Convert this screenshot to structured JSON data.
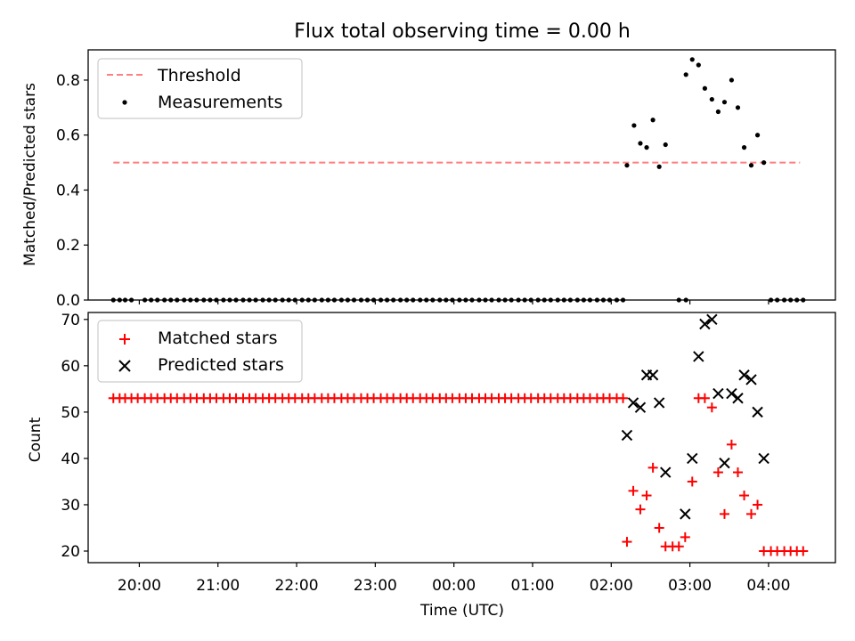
{
  "chart_data": [
    {
      "type": "scatter",
      "title": "Flux total observing time = 0.00 h",
      "ylabel": "Matched/Predicted stars",
      "xlabel": "",
      "xlim": [
        19.35,
        28.85
      ],
      "ylim": [
        0.0,
        0.91
      ],
      "yticks": [
        0.0,
        0.2,
        0.4,
        0.6,
        0.8
      ],
      "ytick_labels": [
        "0.0",
        "0.2",
        "0.4",
        "0.6",
        "0.8"
      ],
      "xticks": [
        20,
        21,
        22,
        23,
        24,
        25,
        26,
        27,
        28
      ],
      "legend": {
        "position": "top-left",
        "entries": [
          "Threshold",
          "Measurements"
        ]
      },
      "series": [
        {
          "name": "Threshold",
          "kind": "dashed-line",
          "color": "#ff7f7f",
          "x": [
            19.67,
            28.4
          ],
          "y": [
            0.5,
            0.5
          ]
        },
        {
          "name": "Measurements",
          "kind": "dots",
          "color": "#000000",
          "points": [
            [
              19.67,
              0
            ],
            [
              19.75,
              0
            ],
            [
              19.82,
              0
            ],
            [
              19.9,
              0
            ],
            [
              20.07,
              0
            ],
            [
              20.15,
              0
            ],
            [
              20.23,
              0
            ],
            [
              20.32,
              0
            ],
            [
              20.4,
              0
            ],
            [
              20.48,
              0
            ],
            [
              20.57,
              0
            ],
            [
              20.65,
              0
            ],
            [
              20.73,
              0
            ],
            [
              20.82,
              0
            ],
            [
              20.9,
              0
            ],
            [
              20.98,
              0
            ],
            [
              21.07,
              0
            ],
            [
              21.15,
              0
            ],
            [
              21.23,
              0
            ],
            [
              21.32,
              0
            ],
            [
              21.4,
              0
            ],
            [
              21.48,
              0
            ],
            [
              21.57,
              0
            ],
            [
              21.65,
              0
            ],
            [
              21.73,
              0
            ],
            [
              21.82,
              0
            ],
            [
              21.9,
              0
            ],
            [
              21.98,
              0
            ],
            [
              22.07,
              0
            ],
            [
              22.15,
              0
            ],
            [
              22.23,
              0
            ],
            [
              22.32,
              0
            ],
            [
              22.4,
              0
            ],
            [
              22.48,
              0
            ],
            [
              22.57,
              0
            ],
            [
              22.65,
              0
            ],
            [
              22.73,
              0
            ],
            [
              22.82,
              0
            ],
            [
              22.9,
              0
            ],
            [
              22.98,
              0
            ],
            [
              23.07,
              0
            ],
            [
              23.15,
              0
            ],
            [
              23.23,
              0
            ],
            [
              23.32,
              0
            ],
            [
              23.4,
              0
            ],
            [
              23.48,
              0
            ],
            [
              23.57,
              0
            ],
            [
              23.65,
              0
            ],
            [
              23.73,
              0
            ],
            [
              23.82,
              0
            ],
            [
              23.9,
              0
            ],
            [
              23.98,
              0
            ],
            [
              24.07,
              0
            ],
            [
              24.15,
              0
            ],
            [
              24.23,
              0
            ],
            [
              24.32,
              0
            ],
            [
              24.4,
              0
            ],
            [
              24.48,
              0
            ],
            [
              24.57,
              0
            ],
            [
              24.65,
              0
            ],
            [
              24.73,
              0
            ],
            [
              24.82,
              0
            ],
            [
              24.9,
              0
            ],
            [
              24.98,
              0
            ],
            [
              25.07,
              0
            ],
            [
              25.15,
              0
            ],
            [
              25.23,
              0
            ],
            [
              25.32,
              0
            ],
            [
              25.4,
              0
            ],
            [
              25.48,
              0
            ],
            [
              25.57,
              0
            ],
            [
              25.65,
              0
            ],
            [
              25.73,
              0
            ],
            [
              25.82,
              0
            ],
            [
              25.9,
              0
            ],
            [
              25.98,
              0
            ],
            [
              26.07,
              0
            ],
            [
              26.15,
              0
            ],
            [
              26.2,
              0.49
            ],
            [
              26.29,
              0.635
            ],
            [
              26.37,
              0.57
            ],
            [
              26.45,
              0.555
            ],
            [
              26.53,
              0.655
            ],
            [
              26.61,
              0.485
            ],
            [
              26.69,
              0.565
            ],
            [
              26.86,
              0
            ],
            [
              26.95,
              0
            ],
            [
              26.95,
              0.82
            ],
            [
              27.03,
              0.875
            ],
            [
              27.11,
              0.855
            ],
            [
              27.19,
              0.77
            ],
            [
              27.28,
              0.73
            ],
            [
              27.36,
              0.685
            ],
            [
              27.44,
              0.72
            ],
            [
              27.53,
              0.8
            ],
            [
              27.61,
              0.7
            ],
            [
              27.69,
              0.555
            ],
            [
              27.78,
              0.49
            ],
            [
              27.86,
              0.6
            ],
            [
              27.94,
              0.5
            ],
            [
              28.03,
              0
            ],
            [
              28.11,
              0
            ],
            [
              28.2,
              0
            ],
            [
              28.28,
              0
            ],
            [
              28.36,
              0
            ],
            [
              28.44,
              0
            ]
          ]
        }
      ]
    },
    {
      "type": "scatter",
      "title": "",
      "xlabel": "Time (UTC)",
      "ylabel": "Count",
      "xlim": [
        19.35,
        28.85
      ],
      "ylim": [
        17.5,
        71.5
      ],
      "yticks": [
        20,
        30,
        40,
        50,
        60,
        70
      ],
      "ytick_labels": [
        "20",
        "30",
        "40",
        "50",
        "60",
        "70"
      ],
      "xticks": [
        20,
        21,
        22,
        23,
        24,
        25,
        26,
        27,
        28
      ],
      "xtick_labels": [
        "20:00",
        "21:00",
        "22:00",
        "23:00",
        "00:00",
        "01:00",
        "02:00",
        "03:00",
        "04:00"
      ],
      "legend": {
        "position": "top-left",
        "entries": [
          "Matched stars",
          "Predicted stars"
        ]
      },
      "series": [
        {
          "name": "Matched stars",
          "marker": "plus",
          "color": "#ff0000",
          "points": [
            [
              19.67,
              53
            ],
            [
              19.75,
              53
            ],
            [
              19.82,
              53
            ],
            [
              19.9,
              53
            ],
            [
              19.98,
              53
            ],
            [
              20.07,
              53
            ],
            [
              20.15,
              53
            ],
            [
              20.23,
              53
            ],
            [
              20.32,
              53
            ],
            [
              20.4,
              53
            ],
            [
              20.48,
              53
            ],
            [
              20.57,
              53
            ],
            [
              20.65,
              53
            ],
            [
              20.73,
              53
            ],
            [
              20.82,
              53
            ],
            [
              20.9,
              53
            ],
            [
              20.98,
              53
            ],
            [
              21.07,
              53
            ],
            [
              21.15,
              53
            ],
            [
              21.23,
              53
            ],
            [
              21.32,
              53
            ],
            [
              21.4,
              53
            ],
            [
              21.48,
              53
            ],
            [
              21.57,
              53
            ],
            [
              21.65,
              53
            ],
            [
              21.73,
              53
            ],
            [
              21.82,
              53
            ],
            [
              21.9,
              53
            ],
            [
              21.98,
              53
            ],
            [
              22.07,
              53
            ],
            [
              22.15,
              53
            ],
            [
              22.23,
              53
            ],
            [
              22.32,
              53
            ],
            [
              22.4,
              53
            ],
            [
              22.48,
              53
            ],
            [
              22.57,
              53
            ],
            [
              22.65,
              53
            ],
            [
              22.73,
              53
            ],
            [
              22.82,
              53
            ],
            [
              22.9,
              53
            ],
            [
              22.98,
              53
            ],
            [
              23.07,
              53
            ],
            [
              23.15,
              53
            ],
            [
              23.23,
              53
            ],
            [
              23.32,
              53
            ],
            [
              23.4,
              53
            ],
            [
              23.48,
              53
            ],
            [
              23.57,
              53
            ],
            [
              23.65,
              53
            ],
            [
              23.73,
              53
            ],
            [
              23.82,
              53
            ],
            [
              23.9,
              53
            ],
            [
              23.98,
              53
            ],
            [
              24.07,
              53
            ],
            [
              24.15,
              53
            ],
            [
              24.23,
              53
            ],
            [
              24.32,
              53
            ],
            [
              24.4,
              53
            ],
            [
              24.48,
              53
            ],
            [
              24.57,
              53
            ],
            [
              24.65,
              53
            ],
            [
              24.73,
              53
            ],
            [
              24.82,
              53
            ],
            [
              24.9,
              53
            ],
            [
              24.98,
              53
            ],
            [
              25.07,
              53
            ],
            [
              25.15,
              53
            ],
            [
              25.23,
              53
            ],
            [
              25.32,
              53
            ],
            [
              25.4,
              53
            ],
            [
              25.48,
              53
            ],
            [
              25.57,
              53
            ],
            [
              25.65,
              53
            ],
            [
              25.73,
              53
            ],
            [
              25.82,
              53
            ],
            [
              25.9,
              53
            ],
            [
              25.98,
              53
            ],
            [
              26.07,
              53
            ],
            [
              26.15,
              53
            ],
            [
              26.2,
              22
            ],
            [
              26.28,
              33
            ],
            [
              26.37,
              29
            ],
            [
              26.45,
              32
            ],
            [
              26.53,
              38
            ],
            [
              26.61,
              25
            ],
            [
              26.69,
              21
            ],
            [
              26.78,
              21
            ],
            [
              26.86,
              21
            ],
            [
              26.94,
              23
            ],
            [
              27.03,
              35
            ],
            [
              27.11,
              53
            ],
            [
              27.19,
              53
            ],
            [
              27.28,
              51
            ],
            [
              27.36,
              37
            ],
            [
              27.44,
              28
            ],
            [
              27.53,
              43
            ],
            [
              27.61,
              37
            ],
            [
              27.69,
              32
            ],
            [
              27.78,
              28
            ],
            [
              27.86,
              30
            ],
            [
              27.94,
              20
            ],
            [
              28.03,
              20
            ],
            [
              28.11,
              20
            ],
            [
              28.2,
              20
            ],
            [
              28.28,
              20
            ],
            [
              28.36,
              20
            ],
            [
              28.44,
              20
            ]
          ]
        },
        {
          "name": "Predicted stars",
          "marker": "x",
          "color": "#000000",
          "points": [
            [
              26.2,
              45
            ],
            [
              26.28,
              52
            ],
            [
              26.37,
              51
            ],
            [
              26.45,
              58
            ],
            [
              26.53,
              58
            ],
            [
              26.61,
              52
            ],
            [
              26.69,
              37
            ],
            [
              26.94,
              28
            ],
            [
              27.03,
              40
            ],
            [
              27.11,
              62
            ],
            [
              27.19,
              69
            ],
            [
              27.28,
              70
            ],
            [
              27.36,
              54
            ],
            [
              27.44,
              39
            ],
            [
              27.53,
              54
            ],
            [
              27.61,
              53
            ],
            [
              27.69,
              58
            ],
            [
              27.78,
              57
            ],
            [
              27.86,
              50
            ],
            [
              27.94,
              40
            ]
          ]
        }
      ]
    }
  ]
}
